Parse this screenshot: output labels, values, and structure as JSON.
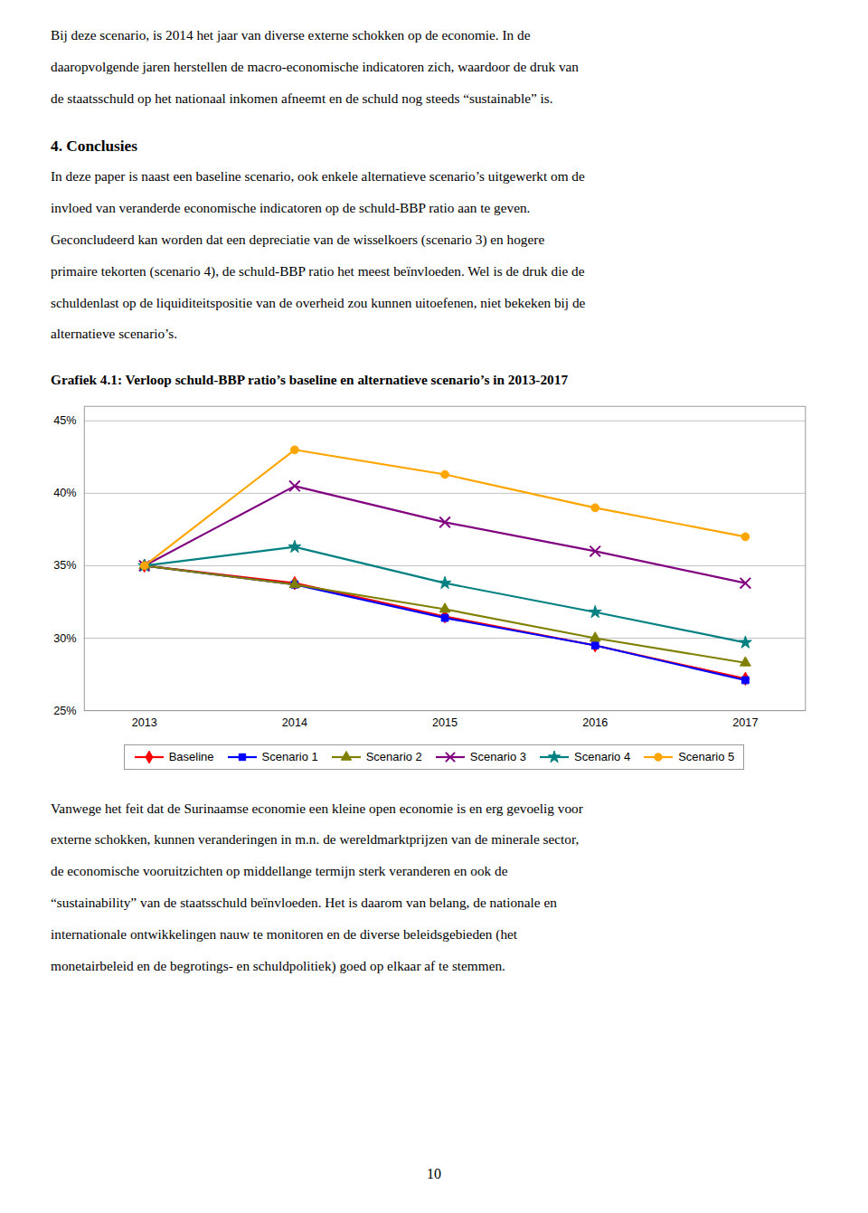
{
  "top_lines": [
    "Bij deze scenario, is 2014 het jaar van diverse externe schokken op de economie. In de",
    "daaropvolgende jaren herstellen de macro-economische indicatoren zich, waardoor de druk van",
    "de staatsschuld op het nationaal inkomen afneemt en de schuld nog steeds “sustainable” is."
  ],
  "section_title": "4.  Conclusies",
  "body1_lines": [
    "In deze paper is naast een baseline scenario, ook enkele alternatieve scenario’s uitgewerkt om de",
    "invloed van veranderde economische indicatoren op de schuld-BBP ratio aan te geven.",
    "Geconcludeerd kan worden dat een depreciatie van de wisselkoers (scenario 3) en hogere",
    "primaire tekorten (scenario 4),  de schuld-BBP ratio het meest beïnvloeden. Wel is de druk die de",
    "schuldenlast op de liquiditeitspositie van de overheid zou kunnen uitoefenen, niet bekeken bij de",
    "alternatieve scenario’s."
  ],
  "body2_lines": [
    "Vanwege het feit dat de Surinaamse economie een kleine open economie is en erg gevoelig voor",
    "externe schokken, kunnen veranderingen in m.n. de wereldmarktprijzen van de minerale sector,",
    "de economische vooruitzichten op middellange termijn sterk veranderen en ook de",
    "“sustainability” van de staatsschuld beïnvloeden. Het is daarom van belang, de nationale en",
    "internationale ontwikkelingen nauw te monitoren en de diverse beleidsgebieden (het",
    "monetairbeleid en de begrotings- en schuldpolitiek) goed op elkaar af te stemmen."
  ],
  "page_number": "10",
  "chart_data": {
    "type": "line",
    "title": "Grafiek 4.1: Verloop schuld-BBP ratio’s baseline en alternatieve scenario’s in 2013-2017",
    "x": [
      2013,
      2014,
      2015,
      2016,
      2017
    ],
    "xlim": [
      2012.6,
      2017.4
    ],
    "xticks": [
      2013,
      2014,
      2015,
      2016,
      2017
    ],
    "ylim": [
      0.25,
      0.46
    ],
    "yticks": [
      {
        "value": 0.25,
        "label": "25%"
      },
      {
        "value": 0.3,
        "label": "30%"
      },
      {
        "value": 0.35,
        "label": "35%"
      },
      {
        "value": 0.4,
        "label": "40%"
      },
      {
        "value": 0.45,
        "label": "45%"
      }
    ],
    "grid": "y",
    "legend": "bottom",
    "series": [
      {
        "name": "Baseline",
        "color": "#FF0000",
        "marker": "diamond",
        "values": [
          0.35,
          0.338,
          0.315,
          0.295,
          0.272
        ]
      },
      {
        "name": "Scenario 1",
        "color": "#0000FF",
        "marker": "square",
        "values": [
          0.35,
          0.337,
          0.314,
          0.295,
          0.271
        ]
      },
      {
        "name": "Scenario 2",
        "color": "#808000",
        "marker": "triangle",
        "values": [
          0.35,
          0.337,
          0.32,
          0.3,
          0.283
        ]
      },
      {
        "name": "Scenario 3",
        "color": "#800080",
        "marker": "x",
        "values": [
          0.35,
          0.405,
          0.38,
          0.36,
          0.338
        ]
      },
      {
        "name": "Scenario 4",
        "color": "#008080",
        "marker": "star",
        "values": [
          0.35,
          0.363,
          0.338,
          0.318,
          0.297
        ]
      },
      {
        "name": "Scenario 5",
        "color": "#FFA500",
        "marker": "circle",
        "values": [
          0.35,
          0.43,
          0.413,
          0.39,
          0.37
        ]
      }
    ]
  }
}
